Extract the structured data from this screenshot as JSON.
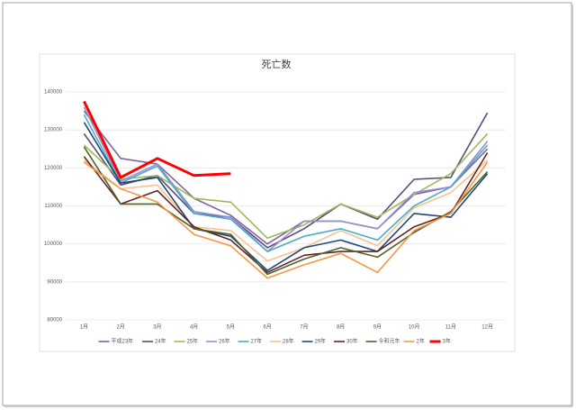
{
  "chart_data": {
    "type": "line",
    "title": "死亡数",
    "categories": [
      "1月",
      "2月",
      "3月",
      "4月",
      "5月",
      "6月",
      "7月",
      "8月",
      "9月",
      "10月",
      "11月",
      "12月"
    ],
    "ylim": [
      80000,
      140000
    ],
    "yticks": [
      80000,
      90000,
      100000,
      110000,
      120000,
      130000,
      140000
    ],
    "grid": true,
    "legend": "bottom",
    "series": [
      {
        "name": "平成23年",
        "color": "#8064a2",
        "values": [
          135000,
          122500,
          121000,
          112000,
          107500,
          100000,
          106000,
          106000,
          104000,
          113000,
          115000,
          125000
        ]
      },
      {
        "name": "24年",
        "color": "#5b4a7a",
        "values": [
          129000,
          115500,
          118000,
          108000,
          107000,
          99000,
          104000,
          110500,
          106500,
          117000,
          117500,
          134500
        ]
      },
      {
        "name": "25年",
        "color": "#9bbb59",
        "values": [
          126000,
          117000,
          118000,
          112000,
          111000,
          101500,
          105000,
          110500,
          107000,
          113000,
          118500,
          129000
        ]
      },
      {
        "name": "26年",
        "color": "#9a8fd0",
        "values": [
          136000,
          116500,
          121000,
          108500,
          107000,
          98000,
          106000,
          106000,
          104000,
          113500,
          115000,
          127000
        ]
      },
      {
        "name": "27年",
        "color": "#4bacc6",
        "values": [
          134000,
          116000,
          120500,
          108000,
          106500,
          98000,
          102000,
          104000,
          101000,
          110000,
          115000,
          126000
        ]
      },
      {
        "name": "28年",
        "color": "#fac090",
        "values": [
          122000,
          114500,
          115500,
          104500,
          103500,
          95500,
          99000,
          103500,
          99500,
          109500,
          113500,
          122000
        ]
      },
      {
        "name": "29年",
        "color": "#1f497d",
        "values": [
          132000,
          116000,
          117500,
          104000,
          102000,
          93000,
          99000,
          101000,
          98000,
          108000,
          107000,
          118500
        ]
      },
      {
        "name": "30年",
        "color": "#632523",
        "values": [
          123000,
          110500,
          114000,
          104500,
          101000,
          92500,
          97000,
          98000,
          98000,
          104500,
          108000,
          124000
        ]
      },
      {
        "name": "令和元年",
        "color": "#4f6228",
        "values": [
          125500,
          110500,
          110500,
          104000,
          102500,
          92000,
          96000,
          99000,
          96500,
          103000,
          108500,
          119000
        ]
      },
      {
        "name": "2年",
        "color": "#f79646",
        "values": [
          121500,
          114500,
          111000,
          102500,
          99500,
          91000,
          94500,
          97500,
          92500,
          103500,
          108000,
          121500
        ]
      },
      {
        "name": "3年",
        "color": "#ff0000",
        "values": [
          137500,
          117500,
          122500,
          118000,
          118500,
          null,
          null,
          null,
          null,
          null,
          null,
          null
        ]
      }
    ]
  }
}
